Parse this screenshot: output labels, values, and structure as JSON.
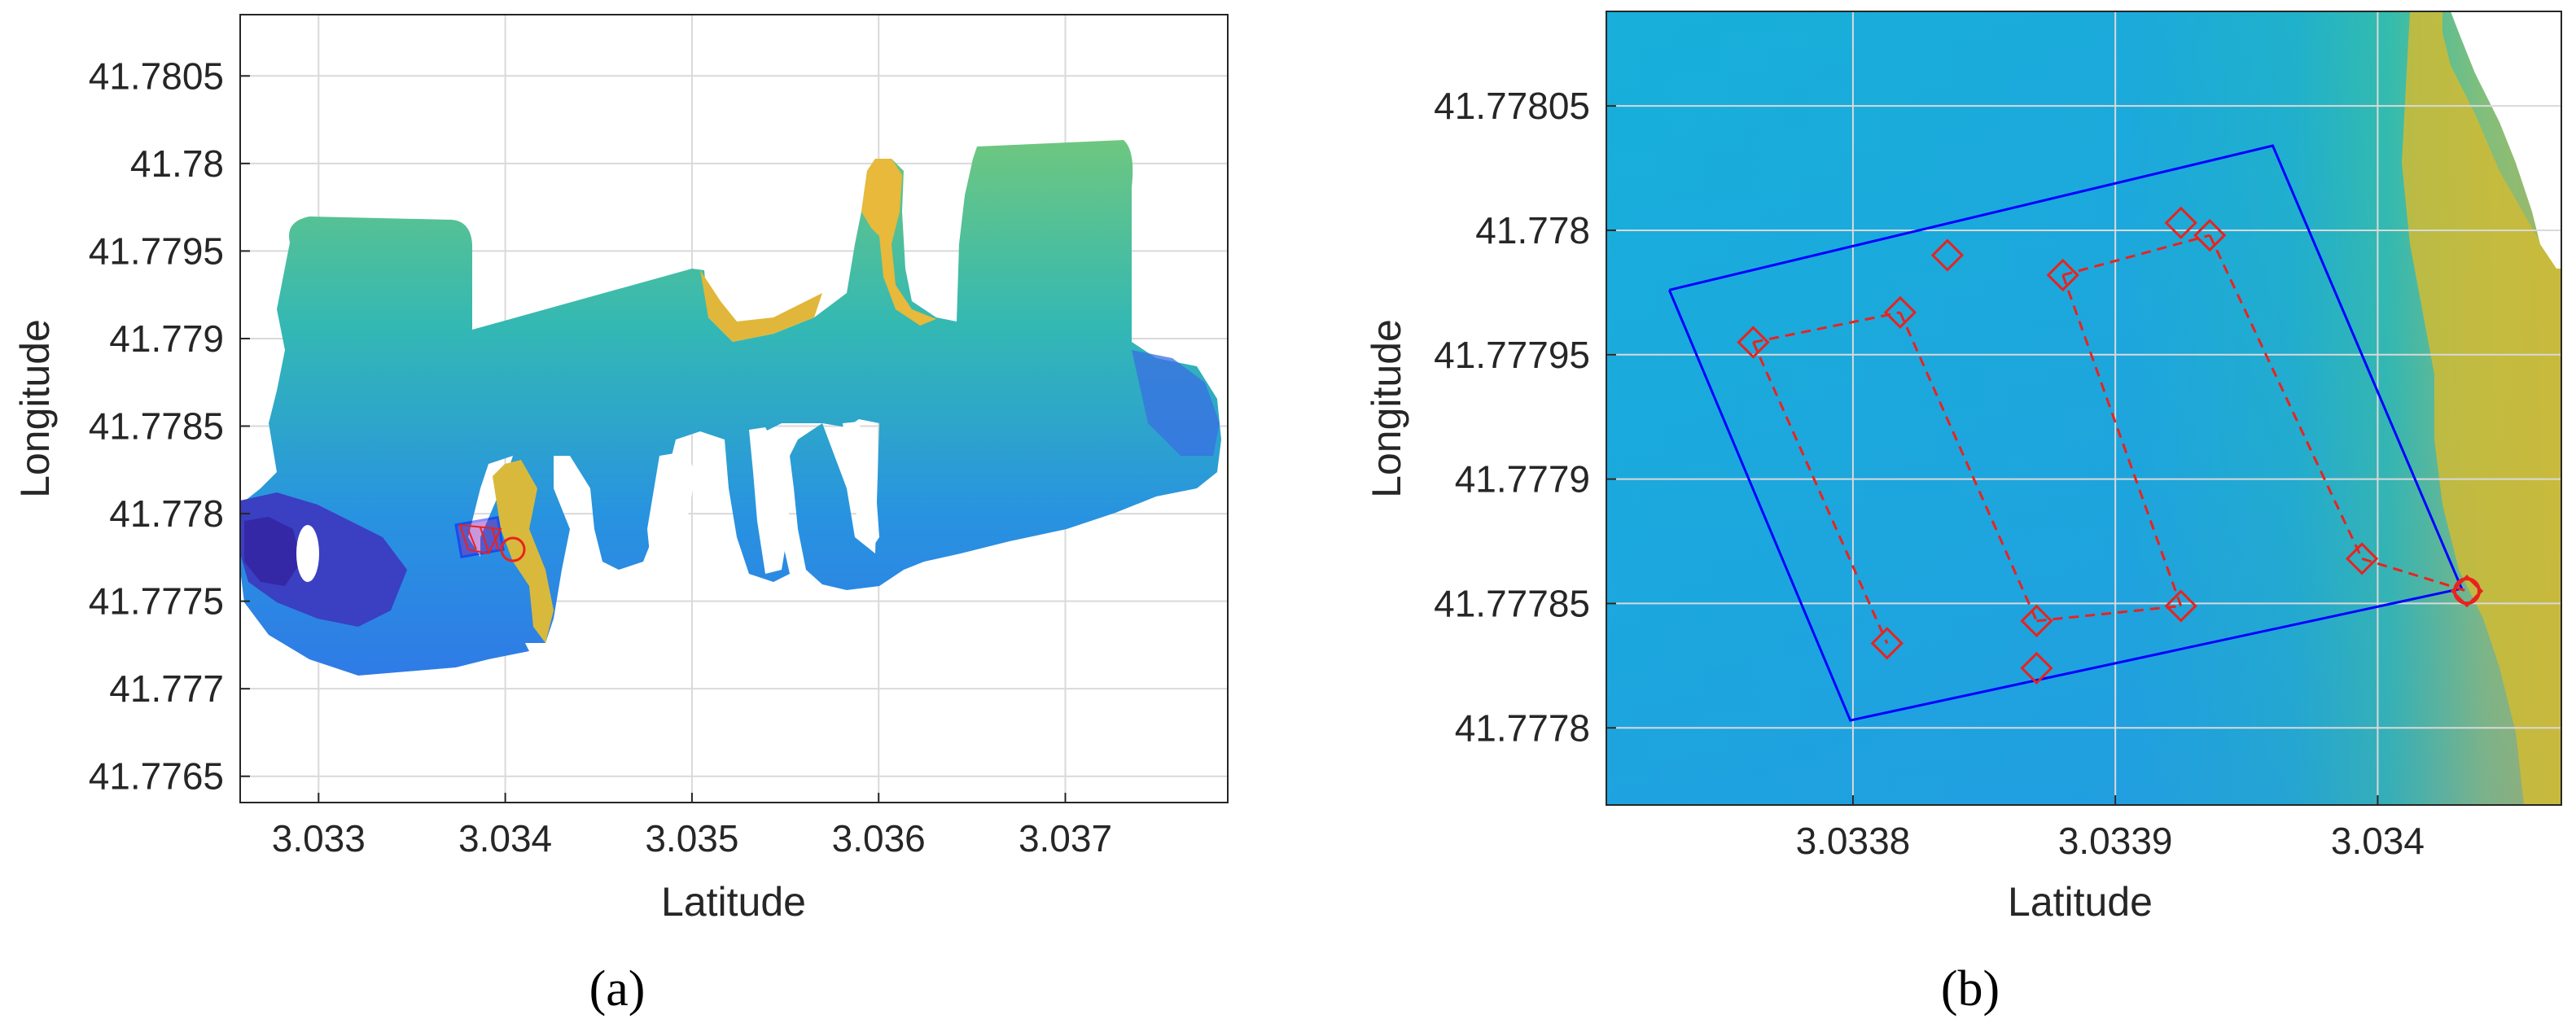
{
  "panels": [
    {
      "id": "a",
      "label": "(a)",
      "chart_data": {
        "type": "heatmap",
        "description": "bathymetry surface map with survey boundary and path",
        "xlabel": "Latitude",
        "ylabel": "Longitude",
        "xlim": [
          3.03258,
          3.03787
        ],
        "ylim": [
          41.77635,
          41.78085
        ],
        "xticks": [
          3.033,
          3.034,
          3.035,
          3.036,
          3.037
        ],
        "xtick_labels": [
          "3.033",
          "3.034",
          "3.035",
          "3.036",
          "3.037"
        ],
        "yticks": [
          41.7765,
          41.777,
          41.7775,
          41.778,
          41.7785,
          41.779,
          41.7795,
          41.78,
          41.7805
        ],
        "ytick_labels": [
          "41.7765",
          "41.777",
          "41.7775",
          "41.778",
          "41.7785",
          "41.779",
          "41.7795",
          "41.78",
          "41.7805"
        ],
        "grid": true,
        "colormap": "parula",
        "overlay_region": {
          "x": [
            3.03376,
            3.03388
          ],
          "y": [
            41.77785,
            41.77802
          ]
        },
        "end_marker": {
          "x": 3.03405,
          "y": 41.77785
        }
      }
    },
    {
      "id": "b",
      "label": "(b)",
      "chart_data": {
        "type": "scatter",
        "xlabel": "Latitude",
        "ylabel": "Longitude",
        "xlim": [
          3.033706,
          3.03407
        ],
        "ylim": [
          41.777769,
          41.778088
        ],
        "xticks": [
          3.0338,
          3.0339,
          3.034
        ],
        "xtick_labels": [
          "3.0338",
          "3.0339",
          "3.034"
        ],
        "yticks": [
          41.7778,
          41.77785,
          41.7779,
          41.77795,
          41.778,
          41.77805
        ],
        "ytick_labels": [
          "41.7778",
          "41.77785",
          "41.7779",
          "41.77795",
          "41.778",
          "41.77805"
        ],
        "grid": true,
        "colormap": "parula",
        "series": [
          {
            "kind": "boundary",
            "style": "solid",
            "color": "#0000ff",
            "x": [
              3.03373,
              3.03396,
              3.034032,
              3.033799,
              3.03373
            ],
            "y": [
              41.777976,
              41.778034,
              41.777856,
              41.777803,
              41.777976
            ]
          },
          {
            "kind": "path",
            "style": "dashed",
            "marker": "diamond",
            "color": "#e8231f",
            "x": [
              3.033762,
              3.033818,
              3.033813,
              3.03387,
              3.033836,
              3.033925,
              3.03387,
              3.033925,
              3.03388,
              3.033936,
              3.033994,
              3.034034
            ],
            "y": [
              41.777955,
              41.777967,
              41.777834,
              41.777824,
              41.77799,
              41.778003,
              41.777843,
              41.777849,
              41.777982,
              41.777998,
              41.777868,
              41.777855
            ]
          },
          {
            "kind": "path-lower-legs",
            "style": "dashed",
            "marker": "diamond",
            "color": "#e8231f",
            "segments": [
              {
                "x": [
                  3.033762,
                  3.033818
                ],
                "y": [
                  41.777955,
                  41.777967
                ]
              },
              {
                "x": [
                  3.033762,
                  3.033813
                ],
                "y": [
                  41.777955,
                  41.777834
                ]
              },
              {
                "x": [
                  3.033818,
                  3.03387
                ],
                "y": [
                  41.777967,
                  41.777843
                ]
              },
              {
                "x": [
                  3.03387,
                  3.033925
                ],
                "y": [
                  41.777843,
                  41.777849
                ]
              },
              {
                "x": [
                  3.03388,
                  3.033925
                ],
                "y": [
                  41.777982,
                  41.777849
                ]
              },
              {
                "x": [
                  3.03388,
                  3.033936
                ],
                "y": [
                  41.777982,
                  41.777998
                ]
              },
              {
                "x": [
                  3.033936,
                  3.033994
                ],
                "y": [
                  41.777998,
                  41.777868
                ]
              },
              {
                "x": [
                  3.033994,
                  3.034034
                ],
                "y": [
                  41.777868,
                  41.777855
                ]
              }
            ]
          },
          {
            "kind": "end-marker",
            "marker": "circle",
            "color": "#e8231f",
            "x": [
              3.034034
            ],
            "y": [
              41.777855
            ]
          }
        ]
      }
    }
  ]
}
